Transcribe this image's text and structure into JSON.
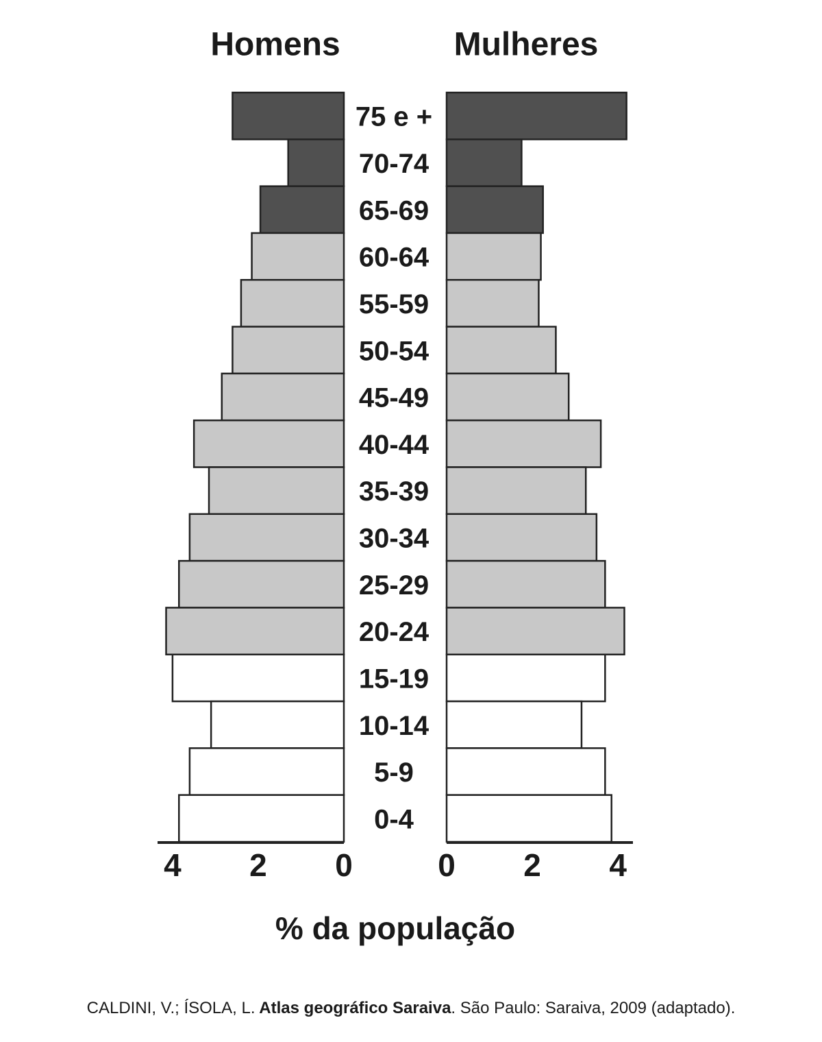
{
  "chart_data": {
    "type": "pyramid",
    "categories": [
      "75 e +",
      "70-74",
      "65-69",
      "60-64",
      "55-59",
      "50-54",
      "45-49",
      "40-44",
      "35-39",
      "30-34",
      "25-29",
      "20-24",
      "15-19",
      "10-14",
      "5-9",
      "0-4"
    ],
    "series": [
      {
        "name": "Homens",
        "values": [
          2.6,
          1.3,
          1.95,
          2.15,
          2.4,
          2.6,
          2.85,
          3.5,
          3.15,
          3.6,
          3.85,
          4.15,
          4.0,
          3.1,
          3.6,
          3.85
        ]
      },
      {
        "name": "Mulheres",
        "values": [
          4.2,
          1.75,
          2.25,
          2.2,
          2.15,
          2.55,
          2.85,
          3.6,
          3.25,
          3.5,
          3.7,
          4.15,
          3.7,
          3.15,
          3.7,
          3.85
        ]
      }
    ],
    "bar_colors": [
      "#505050",
      "#505050",
      "#505050",
      "#c8c8c8",
      "#c8c8c8",
      "#c8c8c8",
      "#c8c8c8",
      "#c8c8c8",
      "#c8c8c8",
      "#c8c8c8",
      "#c8c8c8",
      "#c8c8c8",
      "#ffffff",
      "#ffffff",
      "#ffffff",
      "#ffffff"
    ],
    "xlim": [
      0,
      4.35
    ],
    "xticks": [
      0,
      2,
      4
    ],
    "xlabel": "% da população",
    "source": {
      "authors": "CALDINI, V.; ÍSOLA, L.",
      "title": "Atlas geográfico Saraiva",
      "publication": ". São Paulo: Saraiva, 2009 (adaptado)."
    }
  }
}
